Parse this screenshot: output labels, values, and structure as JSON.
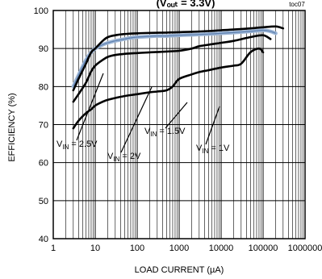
{
  "chart_data": {
    "type": "line",
    "title": "(Vₒᵤₜ = 3.3V)",
    "corner_label": "toc07",
    "xlabel": "LOAD CURRENT (µA)",
    "ylabel": "EFFICIENCY (%)",
    "xscale": "log",
    "xlim": [
      1,
      1000000
    ],
    "ylim": [
      40,
      100
    ],
    "grid": true,
    "x_ticks": [
      1,
      10,
      100,
      1000,
      10000,
      100000,
      1000000
    ],
    "x_tick_labels": [
      "1",
      "10",
      "100",
      "1000",
      "10000",
      "100000",
      "1000000"
    ],
    "y_ticks": [
      40,
      50,
      60,
      70,
      80,
      90,
      100
    ],
    "y_tick_labels": [
      "40",
      "50",
      "60",
      "70",
      "80",
      "90",
      "100"
    ],
    "colors": {
      "curve": "#000000",
      "highlight": "#9db6d6",
      "grid": "#000000"
    },
    "series": [
      {
        "name": "VIN = 2.5V",
        "highlight": true,
        "x": [
          3,
          4,
          6,
          8,
          10,
          15,
          20,
          30,
          50,
          70,
          100,
          200,
          300,
          500,
          1000,
          2000,
          3000,
          5000,
          10000,
          20000,
          50000,
          100000,
          150000,
          200000
        ],
        "y": [
          80,
          83,
          87,
          89,
          90,
          91,
          91.5,
          92,
          92.5,
          92.8,
          93,
          93.2,
          93.3,
          93.3,
          93.5,
          93.6,
          93.7,
          93.8,
          94,
          94.2,
          94.5,
          94.8,
          94.5,
          94
        ]
      },
      {
        "name": "",
        "x": [
          3,
          4,
          6,
          8,
          10,
          15,
          20,
          30,
          50,
          100,
          200,
          500,
          1000,
          2000,
          5000,
          10000,
          20000,
          50000,
          100000,
          200000,
          300000
        ],
        "y": [
          79,
          82,
          86,
          89,
          90,
          92,
          93,
          93.5,
          93.8,
          94,
          94.1,
          94.2,
          94.3,
          94.4,
          94.6,
          94.8,
          95,
          95.3,
          95.6,
          95.8,
          95.3
        ]
      },
      {
        "name": "VIN = 2V",
        "x": [
          3,
          4,
          6,
          8,
          10,
          15,
          20,
          30,
          50,
          100,
          200,
          500,
          1000,
          2000,
          3000,
          5000,
          10000,
          20000,
          50000,
          100000,
          150000
        ],
        "y": [
          76,
          78,
          81,
          84,
          85.5,
          87,
          87.8,
          88.3,
          88.6,
          88.8,
          89,
          89.2,
          89.4,
          90,
          90.6,
          91,
          91.5,
          92,
          93,
          93.5,
          92.5
        ]
      },
      {
        "name": "VIN = 1.5V",
        "x": [
          3,
          4,
          6,
          8,
          10,
          15,
          20,
          30,
          50,
          100,
          200,
          300,
          500,
          700,
          1000,
          2000,
          3000,
          5000,
          10000,
          20000,
          30000,
          50000,
          80000,
          100000
        ],
        "y": [
          69,
          71,
          73,
          74,
          75,
          76,
          76.5,
          77,
          77.5,
          78,
          78.5,
          78.7,
          79,
          80,
          82,
          83.2,
          83.8,
          84.3,
          85,
          85.5,
          86,
          89,
          90,
          89
        ]
      }
    ],
    "annotations": [
      {
        "text": "V",
        "sub": "IN",
        "rest": " = 2.5V"
      },
      {
        "text": "V",
        "sub": "IN",
        "rest": " = 2V"
      },
      {
        "text": "V",
        "sub": "IN",
        "rest": " = 1.5V"
      },
      {
        "text": "V",
        "sub": "IN",
        "rest": " = 1V"
      }
    ]
  }
}
